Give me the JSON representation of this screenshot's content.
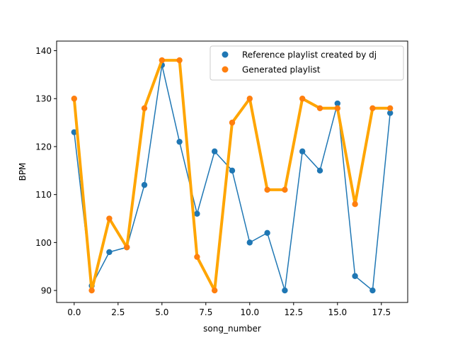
{
  "chart_data": {
    "type": "line",
    "xlabel": "song_number",
    "ylabel": "BPM",
    "xlim": [
      -1.0,
      19.0
    ],
    "ylim": [
      87.5,
      142
    ],
    "x_ticks": [
      0.0,
      2.5,
      5.0,
      7.5,
      10.0,
      12.5,
      15.0,
      17.5
    ],
    "x_tick_labels": [
      "0.0",
      "2.5",
      "5.0",
      "7.5",
      "10.0",
      "12.5",
      "15.0",
      "17.5"
    ],
    "y_ticks": [
      90,
      100,
      110,
      120,
      130,
      140
    ],
    "y_tick_labels": [
      "90",
      "100",
      "110",
      "120",
      "130",
      "140"
    ],
    "grid": false,
    "legend_position": "top-right",
    "x": [
      0,
      1,
      2,
      3,
      4,
      5,
      6,
      7,
      8,
      9,
      10,
      11,
      12,
      13,
      14,
      15,
      16,
      17,
      18
    ],
    "series": [
      {
        "name": "Reference playlist created by dj",
        "color": "#1f77b4",
        "line_color": "#1f77b4",
        "values": [
          123,
          91,
          98,
          99,
          112,
          137,
          121,
          106,
          119,
          115,
          100,
          102,
          90,
          119,
          115,
          129,
          93,
          90,
          127
        ]
      },
      {
        "name": "Generated playlist",
        "color": "#ff7f0e",
        "line_color": "#ffa500",
        "values": [
          130,
          90,
          105,
          99,
          128,
          138,
          138,
          97,
          90,
          125,
          130,
          111,
          111,
          130,
          128,
          128,
          108,
          128,
          128
        ]
      }
    ]
  }
}
